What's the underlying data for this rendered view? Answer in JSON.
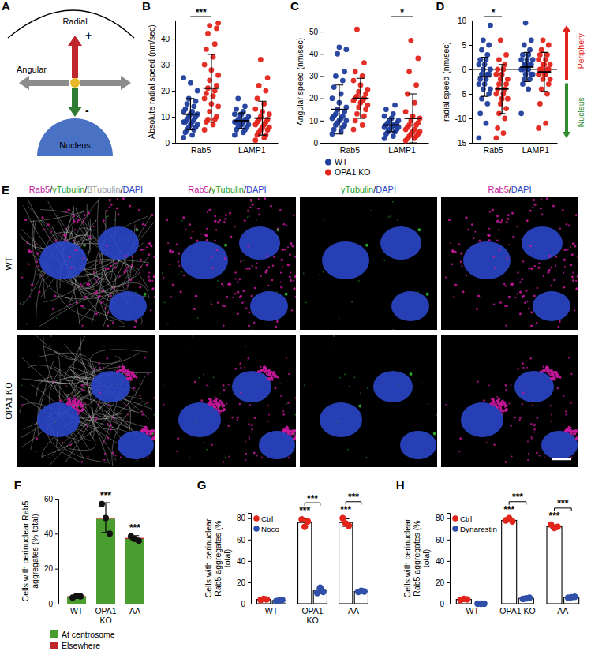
{
  "chart_data": [
    {
      "type": "dot",
      "panel": "B",
      "y_label": "Absolute radial speed (nm/sec)",
      "categories": [
        "Rab5",
        "LAMP1"
      ],
      "ylim": [
        0,
        47
      ],
      "yticks": [
        0,
        10,
        20,
        30,
        40
      ],
      "series": [
        {
          "color": "#1f3d9c",
          "values": [
            [
              2,
              3,
              4,
              5,
              5,
              6,
              6,
              7,
              7,
              8,
              8,
              8,
              9,
              9,
              10,
              10,
              11,
              11,
              12,
              12,
              13,
              14,
              15,
              16,
              17,
              20,
              23,
              25
            ],
            [
              3,
              4,
              5,
              5,
              6,
              6,
              7,
              7,
              7,
              8,
              8,
              8,
              9,
              9,
              9,
              10,
              10,
              11,
              11,
              12,
              13,
              14,
              17
            ]
          ],
          "mean": [
            11,
            8.5
          ],
          "sd": [
            6,
            3
          ]
        },
        {
          "color": "#e3241b",
          "values": [
            [
              5,
              7,
              8,
              9,
              9,
              10,
              12,
              14,
              15,
              17,
              18,
              19,
              20,
              21,
              22,
              24,
              26,
              28,
              30,
              33,
              36,
              38,
              42,
              44,
              45,
              46
            ],
            [
              1,
              2,
              3,
              3,
              4,
              5,
              5,
              6,
              6,
              7,
              7,
              8,
              8,
              9,
              9,
              10,
              11,
              12,
              13,
              15,
              17,
              20,
              22,
              25,
              32
            ]
          ],
          "mean": [
            21,
            9.5
          ],
          "sd": [
            13,
            6.5
          ]
        }
      ],
      "annotations": [
        {
          "text": "***",
          "category": 0,
          "series": [
            0,
            1
          ]
        }
      ]
    },
    {
      "type": "dot",
      "panel": "C",
      "y_label": "Angular speed (nm/sec)",
      "categories": [
        "Rab5",
        "LAMP1"
      ],
      "ylim": [
        0,
        55
      ],
      "yticks": [
        0,
        10,
        20,
        30,
        40,
        50
      ],
      "legend": "bottom",
      "series": [
        {
          "name": "WT",
          "color": "#1f3d9c",
          "values": [
            [
              4,
              5,
              6,
              7,
              8,
              8,
              9,
              10,
              10,
              11,
              11,
              12,
              12,
              13,
              14,
              15,
              16,
              18,
              20,
              22,
              25,
              28,
              30,
              32,
              40,
              42,
              43
            ],
            [
              2,
              3,
              4,
              5,
              5,
              6,
              6,
              7,
              7,
              7,
              8,
              8,
              8,
              9,
              9,
              10,
              10,
              11,
              12,
              13,
              15,
              17
            ]
          ],
          "mean": [
            15,
            8
          ],
          "sd": [
            11,
            3
          ]
        },
        {
          "name": "OPA1 KO",
          "color": "#e3241b",
          "values": [
            [
              6,
              8,
              10,
              12,
              13,
              15,
              16,
              17,
              18,
              19,
              19,
              20,
              20,
              21,
              22,
              23,
              24,
              26,
              28,
              30,
              32,
              36,
              51
            ],
            [
              1,
              2,
              2,
              3,
              3,
              4,
              4,
              5,
              5,
              6,
              6,
              7,
              8,
              8,
              9,
              10,
              11,
              12,
              14,
              18,
              22,
              26,
              32,
              38,
              46
            ]
          ],
          "mean": [
            20,
            11
          ],
          "sd": [
            9,
            11
          ]
        }
      ],
      "annotations": [
        {
          "text": "*",
          "category": 1,
          "series": [
            0,
            1
          ]
        }
      ]
    },
    {
      "type": "dot",
      "panel": "D",
      "y_label": "radial speed (nm/sec)",
      "categories": [
        "Rab5",
        "LAMP1"
      ],
      "ylim": [
        -15,
        10
      ],
      "yticks": [
        -15,
        -10,
        -5,
        0,
        5,
        10
      ],
      "series": [
        {
          "color": "#1f3d9c",
          "values": [
            [
              -14,
              -11,
              -9,
              -7,
              -6,
              -5,
              -4,
              -4,
              -3,
              -3,
              -2,
              -2,
              -1,
              -1,
              -1,
              0,
              0,
              1,
              1,
              2,
              2,
              3,
              4,
              5,
              6,
              9
            ],
            [
              -9,
              -4,
              -3,
              -2,
              -2,
              -1,
              -1,
              -1,
              0,
              0,
              0,
              0,
              1,
              1,
              1,
              1,
              2,
              2,
              2,
              3,
              3,
              4,
              5,
              6,
              9.5
            ]
          ],
          "mean": [
            -1.5,
            0.5
          ],
          "sd": [
            4,
            3
          ]
        },
        {
          "color": "#e3241b",
          "values": [
            [
              -14,
              -13,
              -12,
              -10,
              -9,
              -8,
              -7,
              -6,
              -6,
              -5,
              -5,
              -4,
              -4,
              -3,
              -3,
              -2,
              -2,
              -1,
              -1,
              0,
              0,
              1,
              2,
              3,
              6
            ],
            [
              -12,
              -11,
              -7,
              -5,
              -4,
              -3,
              -2,
              -2,
              -1,
              -1,
              -1,
              0,
              0,
              0,
              0,
              1,
              1,
              1,
              2,
              2,
              3,
              3,
              4,
              5,
              6
            ]
          ],
          "mean": [
            -4,
            -0.5
          ],
          "sd": [
            5,
            4
          ]
        }
      ],
      "annotations": [
        {
          "text": "*",
          "category": 0,
          "series": [
            0,
            1
          ]
        }
      ],
      "direction_labels": [
        {
          "text": "Periphery",
          "color": "#e3241b"
        },
        {
          "text": "Nucleus",
          "color": "#2e8b2e"
        }
      ]
    },
    {
      "type": "bar",
      "panel": "F",
      "stacked": true,
      "legend": "bottom",
      "y_label": "Cells with perinuclear Rab5 aggregates (% total)",
      "categories": [
        "WT",
        "OPA1 KO",
        "AA"
      ],
      "ylim": [
        0,
        60
      ],
      "yticks": [
        0,
        20,
        40,
        60
      ],
      "series": [
        {
          "name": "At centrosome",
          "color": "#4a9e2f",
          "values": [
            4,
            48.5,
            37
          ]
        },
        {
          "name": "Elsewhere",
          "color": "#c0272d",
          "values": [
            0.3,
            0.7,
            0.6
          ]
        }
      ],
      "points": [
        [
          3.5,
          4.5,
          4.2
        ],
        [
          57,
          49,
          40
        ],
        [
          38.5,
          37,
          36
        ]
      ],
      "error": [
        0.5,
        8.5,
        1.3
      ],
      "annotations": [
        {
          "text": "***",
          "category": 1
        },
        {
          "text": "***",
          "category": 2
        }
      ]
    },
    {
      "type": "bar",
      "panel": "G",
      "legend": "top-left",
      "y_label": "Cells with perinuclear Rab5 aggregates (% total)",
      "categories": [
        "WT",
        "OPA1 KO",
        "AA"
      ],
      "ylim": [
        0,
        85
      ],
      "yticks": [
        0,
        20,
        40,
        60,
        80
      ],
      "series": [
        {
          "name": "Ctrl",
          "color": "#e3241b",
          "values": [
            4,
            76,
            76
          ],
          "points": [
            [
              3.5,
              4.5,
              4
            ],
            [
              79,
              72,
              77
            ],
            [
              80,
              75,
              73
            ]
          ],
          "error": [
            0.6,
            3.5,
            3.5
          ]
        },
        {
          "name": "Noco",
          "color": "#2f4fa8",
          "values": [
            3,
            12,
            11.5
          ],
          "points": [
            [
              2.5,
              3,
              3.5
            ],
            [
              10,
              15,
              11
            ],
            [
              11,
              12,
              11.5
            ]
          ],
          "error": [
            0.5,
            2.5,
            0.5
          ]
        }
      ],
      "annotations": [
        {
          "text": "***",
          "category": 1,
          "series": [
            0
          ]
        },
        {
          "text": "***",
          "category": 2,
          "series": [
            0
          ]
        },
        {
          "text": "***",
          "category": 1,
          "series": [
            0,
            1
          ]
        },
        {
          "text": "***",
          "category": 2,
          "series": [
            0,
            1
          ]
        }
      ]
    },
    {
      "type": "bar",
      "panel": "H",
      "legend": "top-left",
      "y_label": "Cells with perinuclear Rab5 aggregates (% total)",
      "categories": [
        "WT",
        "OPA1 KO",
        "AA"
      ],
      "ylim": [
        0,
        85
      ],
      "yticks": [
        0,
        20,
        40,
        60,
        80
      ],
      "series": [
        {
          "name": "Ctrl",
          "color": "#e3241b",
          "values": [
            4,
            78,
            72
          ],
          "points": [
            [
              3.5,
              4.5,
              4
            ],
            [
              78,
              80,
              77
            ],
            [
              74,
              71,
              72
            ]
          ],
          "error": [
            0.5,
            1.5,
            1.5
          ]
        },
        {
          "name": "Dynarestin",
          "color": "#2f4fa8",
          "values": [
            0,
            5,
            6
          ],
          "points": [
            [
              0,
              0,
              0
            ],
            [
              4.5,
              5,
              5.5
            ],
            [
              5.5,
              6,
              6.5
            ]
          ],
          "error": [
            0,
            0.5,
            0.5
          ]
        }
      ],
      "annotations": [
        {
          "text": "***",
          "category": 1,
          "series": [
            0
          ]
        },
        {
          "text": "***",
          "category": 2,
          "series": [
            0
          ]
        },
        {
          "text": "***",
          "category": 1,
          "series": [
            0,
            1
          ]
        },
        {
          "text": "***",
          "category": 2,
          "series": [
            0,
            1
          ]
        }
      ]
    }
  ],
  "diagram": {
    "panel": "A",
    "labels": {
      "radial": "Radial",
      "plus": "+",
      "minus": "-",
      "angular": "Angular",
      "nucleus": "Nucleus"
    }
  },
  "micrographs": {
    "panel": "E",
    "columns": [
      "Rab5/γTubulin/βTubulin/DAPI",
      "Rab5/γTubulin/DAPI",
      "γTubulin/DAPI",
      "Rab5/DAPI"
    ],
    "rows": [
      "WT",
      "OPA1 KO"
    ],
    "stains": [
      {
        "name": "Rab5",
        "color": "#c8189c"
      },
      {
        "name": "γTubulin",
        "color": "#2ca02c"
      },
      {
        "name": "βTubulin",
        "color": "#9a9a9a"
      },
      {
        "name": "DAPI",
        "color": "#2a46c8"
      }
    ]
  }
}
